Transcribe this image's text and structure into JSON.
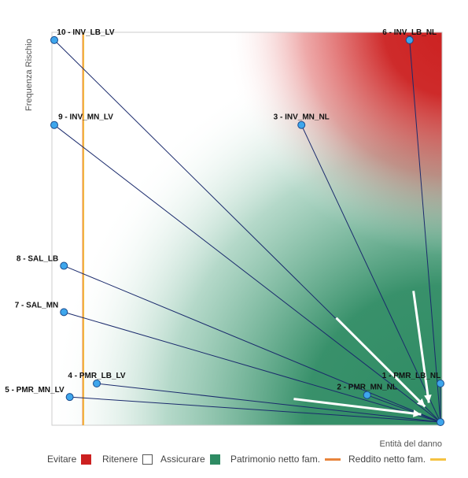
{
  "colors": {
    "evitare": "#cc2020",
    "ritenere": "#ffffff",
    "assicurare": "#2e8b63",
    "patrimonio": "#e8843c",
    "reddito": "#f5c242",
    "vector": "#1a2a6c",
    "point_fill": "#3ea6ec",
    "point_stroke": "#1a4a8c",
    "arrow": "#ffffff"
  },
  "chart_data": {
    "type": "scatter",
    "xlabel": "Entità del danno",
    "ylabel": "Frequenza Rischio",
    "xlim": [
      0,
      100
    ],
    "ylim": [
      0,
      100
    ],
    "grid": false,
    "legend_position": "bottom",
    "origin": [
      100,
      0
    ],
    "points": [
      {
        "label": "1 - PMR_LB_NL",
        "x": 100,
        "y": 10
      },
      {
        "label": "2 - PMR_MN_NL",
        "x": 81,
        "y": 7
      },
      {
        "label": "3 - INV_MN_NL",
        "x": 64,
        "y": 77
      },
      {
        "label": "4 - PMR_LB_LV",
        "x": 11,
        "y": 10
      },
      {
        "label": "5 - PMR_MN_LV",
        "x": 4,
        "y": 6.5
      },
      {
        "label": "6 - INV_LB_NL",
        "x": 92,
        "y": 99
      },
      {
        "label": "7 - SAL_MN",
        "x": 2.5,
        "y": 28.5
      },
      {
        "label": "8 - SAL_LB",
        "x": 2.5,
        "y": 40.5
      },
      {
        "label": "9 - INV_MN_LV",
        "x": 0,
        "y": 77
      },
      {
        "label": "10 - INV_LB_LV",
        "x": 0,
        "y": 99
      }
    ],
    "reference_lines": [
      {
        "name": "Patrimonio netto fam.",
        "x": 7.5,
        "color": "orange"
      },
      {
        "name": "Reddito netto fam.",
        "x": 7.5,
        "color": "yellow"
      }
    ],
    "arrows": [
      {
        "from": [
          73,
          27
        ],
        "to": [
          96,
          4
        ]
      },
      {
        "from": [
          93,
          34
        ],
        "to": [
          97,
          5
        ]
      },
      {
        "from": [
          62,
          6
        ],
        "to": [
          95,
          2
        ]
      }
    ]
  },
  "legend": [
    {
      "label": "Evitare",
      "type": "swatch",
      "color_key": "evitare"
    },
    {
      "label": "Ritenere",
      "type": "swatch",
      "color_key": "ritenere"
    },
    {
      "label": "Assicurare",
      "type": "swatch",
      "color_key": "assicurare"
    },
    {
      "label": "Patrimonio netto fam.",
      "type": "line",
      "color_key": "patrimonio"
    },
    {
      "label": "Reddito netto fam.",
      "type": "line",
      "color_key": "reddito"
    }
  ]
}
